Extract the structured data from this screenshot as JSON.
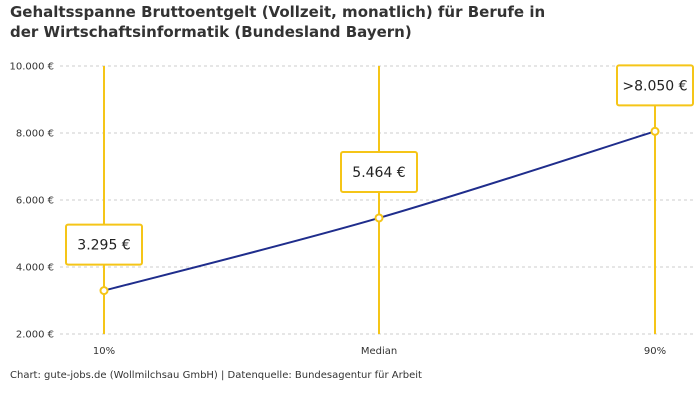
{
  "title": "Gehaltsspanne Bruttoentgelt (Vollzeit, monatlich) für Berufe in der Wirtschaftsinformatik (Bundesland Bayern)",
  "caption": "Chart: gute-jobs.de (Wollmilchsau GmbH) | Datenquelle: Bundesagentur für Arbeit",
  "colors": {
    "line": "#1f2d8c",
    "accent": "#f5c518",
    "grid": "#cccccc"
  },
  "chart_data": {
    "type": "line",
    "title": "Gehaltsspanne Bruttoentgelt (Vollzeit, monatlich) für Berufe in der Wirtschaftsinformatik (Bundesland Bayern)",
    "categories": [
      "10%",
      "Median",
      "90%"
    ],
    "values": [
      3295,
      5464,
      8050
    ],
    "value_labels": [
      "3.295 €",
      "5.464 €",
      ">8.050 €"
    ],
    "yticks": [
      2000,
      4000,
      6000,
      8000,
      10000
    ],
    "ytick_labels": [
      "2.000 €",
      "4.000 €",
      "6.000 €",
      "8.000 €",
      "10.000 €"
    ],
    "ylim": [
      2000,
      10000
    ],
    "grid": true
  }
}
